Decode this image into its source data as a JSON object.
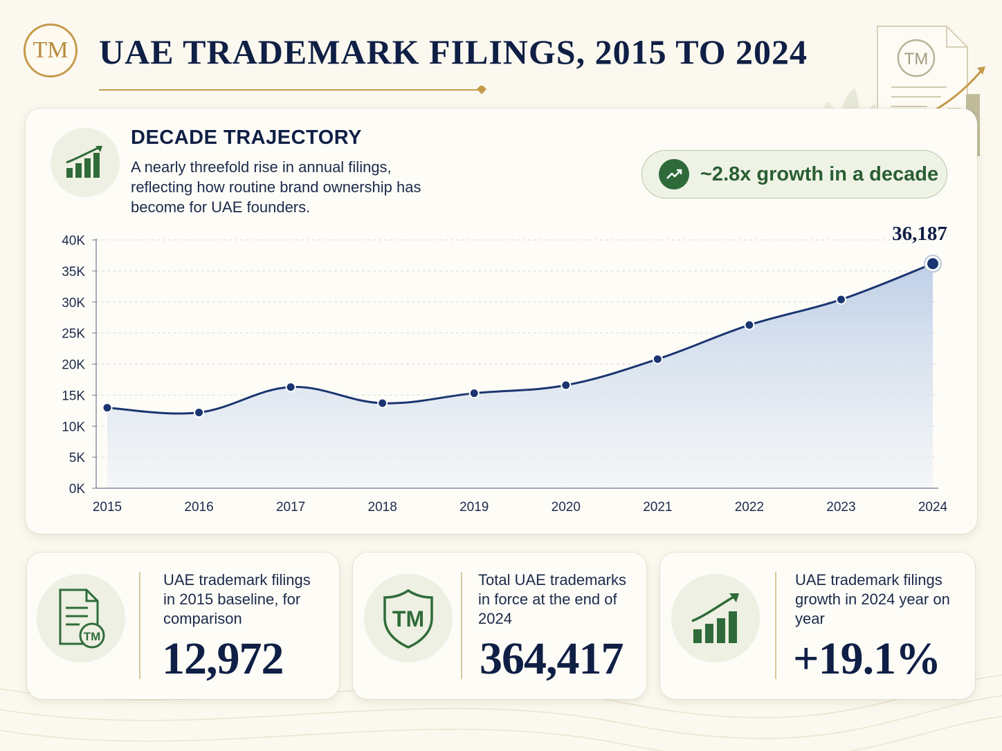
{
  "header": {
    "logo_text": "TM",
    "title": "UAE TRADEMARK FILINGS, 2015 TO 2024",
    "deco_doc_text": "TM"
  },
  "trajectory": {
    "title": "DECADE TRAJECTORY",
    "description": "A nearly threefold rise in annual filings, reflecting how routine brand ownership has become for UAE founders.",
    "growth_badge": "~2.8x growth in a decade",
    "peak_label": "36,187"
  },
  "chart_data": {
    "type": "area",
    "title": "",
    "xlabel": "",
    "ylabel": "",
    "x": [
      "2015",
      "2016",
      "2017",
      "2018",
      "2019",
      "2020",
      "2021",
      "2022",
      "2023",
      "2024"
    ],
    "series": [
      {
        "values": [
          12972,
          12200,
          16300,
          13700,
          15300,
          16600,
          20800,
          26300,
          30400,
          36187
        ]
      }
    ],
    "ylim": [
      0,
      40000
    ],
    "yticks": [
      {
        "value": 0,
        "label": "0K"
      },
      {
        "value": 5000,
        "label": "5K"
      },
      {
        "value": 10000,
        "label": "10K"
      },
      {
        "value": 15000,
        "label": "15K"
      },
      {
        "value": 20000,
        "label": "20K"
      },
      {
        "value": 25000,
        "label": "25K"
      },
      {
        "value": 30000,
        "label": "30K"
      },
      {
        "value": 35000,
        "label": "35K"
      },
      {
        "value": 40000,
        "label": "40K"
      }
    ],
    "grid": true,
    "line_color": "#1b3570",
    "fill_color": "#c7d5ea"
  },
  "stats": [
    {
      "label": "UAE trademark filings in 2015 baseline, for comparison",
      "value": "12,972",
      "icon": "document-tm-icon",
      "icon_text": "TM"
    },
    {
      "label": "Total UAE trademarks in force at the end of 2024",
      "value": "364,417",
      "icon": "shield-tm-icon",
      "icon_text": "TM"
    },
    {
      "label": "UAE trademark filings growth in 2024 year on year",
      "value": "+19.1%",
      "icon": "bar-chart-growth-icon"
    }
  ],
  "colors": {
    "navy": "#0f1f45",
    "gold": "#c49a4a",
    "green": "#2f6b3a",
    "background": "#fbf8ef"
  }
}
